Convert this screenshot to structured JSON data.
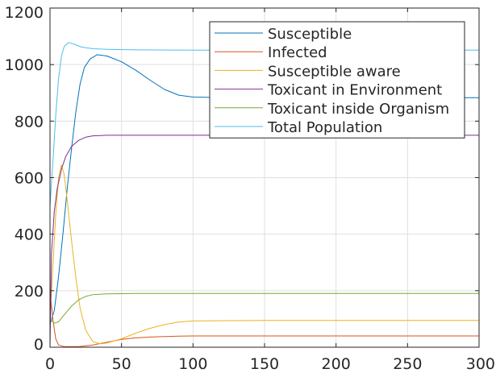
{
  "chart_data": {
    "type": "line",
    "title": "",
    "xlabel": "",
    "ylabel": "",
    "xlim": [
      0,
      300
    ],
    "ylim": [
      0,
      1200
    ],
    "x_ticks": [
      0,
      50,
      100,
      150,
      200,
      250,
      300
    ],
    "y_ticks": [
      0,
      200,
      400,
      600,
      800,
      1000,
      1200
    ],
    "x_tick_labels": [
      "0",
      "50",
      "100",
      "150",
      "200",
      "250",
      "300"
    ],
    "y_tick_labels": [
      "0",
      "200",
      "400",
      "600",
      "800",
      "1000",
      "1200"
    ],
    "grid": true,
    "legend_position": "top-right",
    "series": [
      {
        "name": "Susceptible",
        "color": "#0072bd",
        "points": [
          [
            0,
            80
          ],
          [
            3,
            130
          ],
          [
            6,
            250
          ],
          [
            9,
            400
          ],
          [
            12,
            560
          ],
          [
            15,
            700
          ],
          [
            18,
            830
          ],
          [
            21,
            930
          ],
          [
            24,
            990
          ],
          [
            28,
            1020
          ],
          [
            33,
            1035
          ],
          [
            40,
            1030
          ],
          [
            50,
            1010
          ],
          [
            60,
            980
          ],
          [
            70,
            945
          ],
          [
            80,
            912
          ],
          [
            90,
            892
          ],
          [
            100,
            885
          ],
          [
            120,
            883
          ],
          [
            150,
            883
          ],
          [
            200,
            883
          ],
          [
            250,
            883
          ],
          [
            300,
            883
          ]
        ]
      },
      {
        "name": "Infected",
        "color": "#d95319",
        "points": [
          [
            0,
            200
          ],
          [
            2,
            100
          ],
          [
            4,
            30
          ],
          [
            6,
            8
          ],
          [
            10,
            2
          ],
          [
            20,
            2
          ],
          [
            30,
            8
          ],
          [
            40,
            18
          ],
          [
            50,
            28
          ],
          [
            60,
            33
          ],
          [
            70,
            36
          ],
          [
            80,
            38
          ],
          [
            90,
            39
          ],
          [
            100,
            40
          ],
          [
            150,
            40
          ],
          [
            200,
            40
          ],
          [
            250,
            40
          ],
          [
            300,
            40
          ]
        ]
      },
      {
        "name": "Susceptible aware",
        "color": "#edb120",
        "points": [
          [
            0,
            100
          ],
          [
            2,
            280
          ],
          [
            4,
            470
          ],
          [
            6,
            600
          ],
          [
            8,
            645
          ],
          [
            10,
            610
          ],
          [
            12,
            520
          ],
          [
            15,
            380
          ],
          [
            18,
            250
          ],
          [
            21,
            140
          ],
          [
            25,
            60
          ],
          [
            30,
            20
          ],
          [
            35,
            12
          ],
          [
            40,
            15
          ],
          [
            50,
            30
          ],
          [
            60,
            50
          ],
          [
            70,
            67
          ],
          [
            80,
            80
          ],
          [
            90,
            89
          ],
          [
            100,
            93
          ],
          [
            150,
            95
          ],
          [
            200,
            95
          ],
          [
            250,
            95
          ],
          [
            300,
            95
          ]
        ]
      },
      {
        "name": "Toxicant in Environment",
        "color": "#7e2f8e",
        "points": [
          [
            0,
            0
          ],
          [
            1,
            330
          ],
          [
            3,
            480
          ],
          [
            5,
            560
          ],
          [
            8,
            630
          ],
          [
            11,
            675
          ],
          [
            15,
            710
          ],
          [
            20,
            732
          ],
          [
            25,
            743
          ],
          [
            30,
            748
          ],
          [
            40,
            750
          ],
          [
            60,
            750
          ],
          [
            100,
            750
          ],
          [
            150,
            750
          ],
          [
            200,
            750
          ],
          [
            250,
            750
          ],
          [
            300,
            750
          ]
        ]
      },
      {
        "name": "Toxicant inside Organism",
        "color": "#77ac30",
        "points": [
          [
            0,
            100
          ],
          [
            3,
            85
          ],
          [
            6,
            90
          ],
          [
            10,
            115
          ],
          [
            15,
            145
          ],
          [
            20,
            168
          ],
          [
            25,
            180
          ],
          [
            30,
            186
          ],
          [
            40,
            189
          ],
          [
            60,
            190
          ],
          [
            100,
            190
          ],
          [
            150,
            190
          ],
          [
            200,
            190
          ],
          [
            250,
            190
          ],
          [
            300,
            190
          ]
        ]
      },
      {
        "name": "Total Population",
        "color": "#4dbeee",
        "points": [
          [
            0,
            500
          ],
          [
            2,
            650
          ],
          [
            4,
            820
          ],
          [
            6,
            950
          ],
          [
            8,
            1030
          ],
          [
            10,
            1065
          ],
          [
            13,
            1078
          ],
          [
            17,
            1072
          ],
          [
            22,
            1062
          ],
          [
            30,
            1056
          ],
          [
            40,
            1054
          ],
          [
            60,
            1052
          ],
          [
            100,
            1051
          ],
          [
            150,
            1051
          ],
          [
            200,
            1051
          ],
          [
            250,
            1051
          ],
          [
            300,
            1051
          ]
        ]
      }
    ]
  }
}
